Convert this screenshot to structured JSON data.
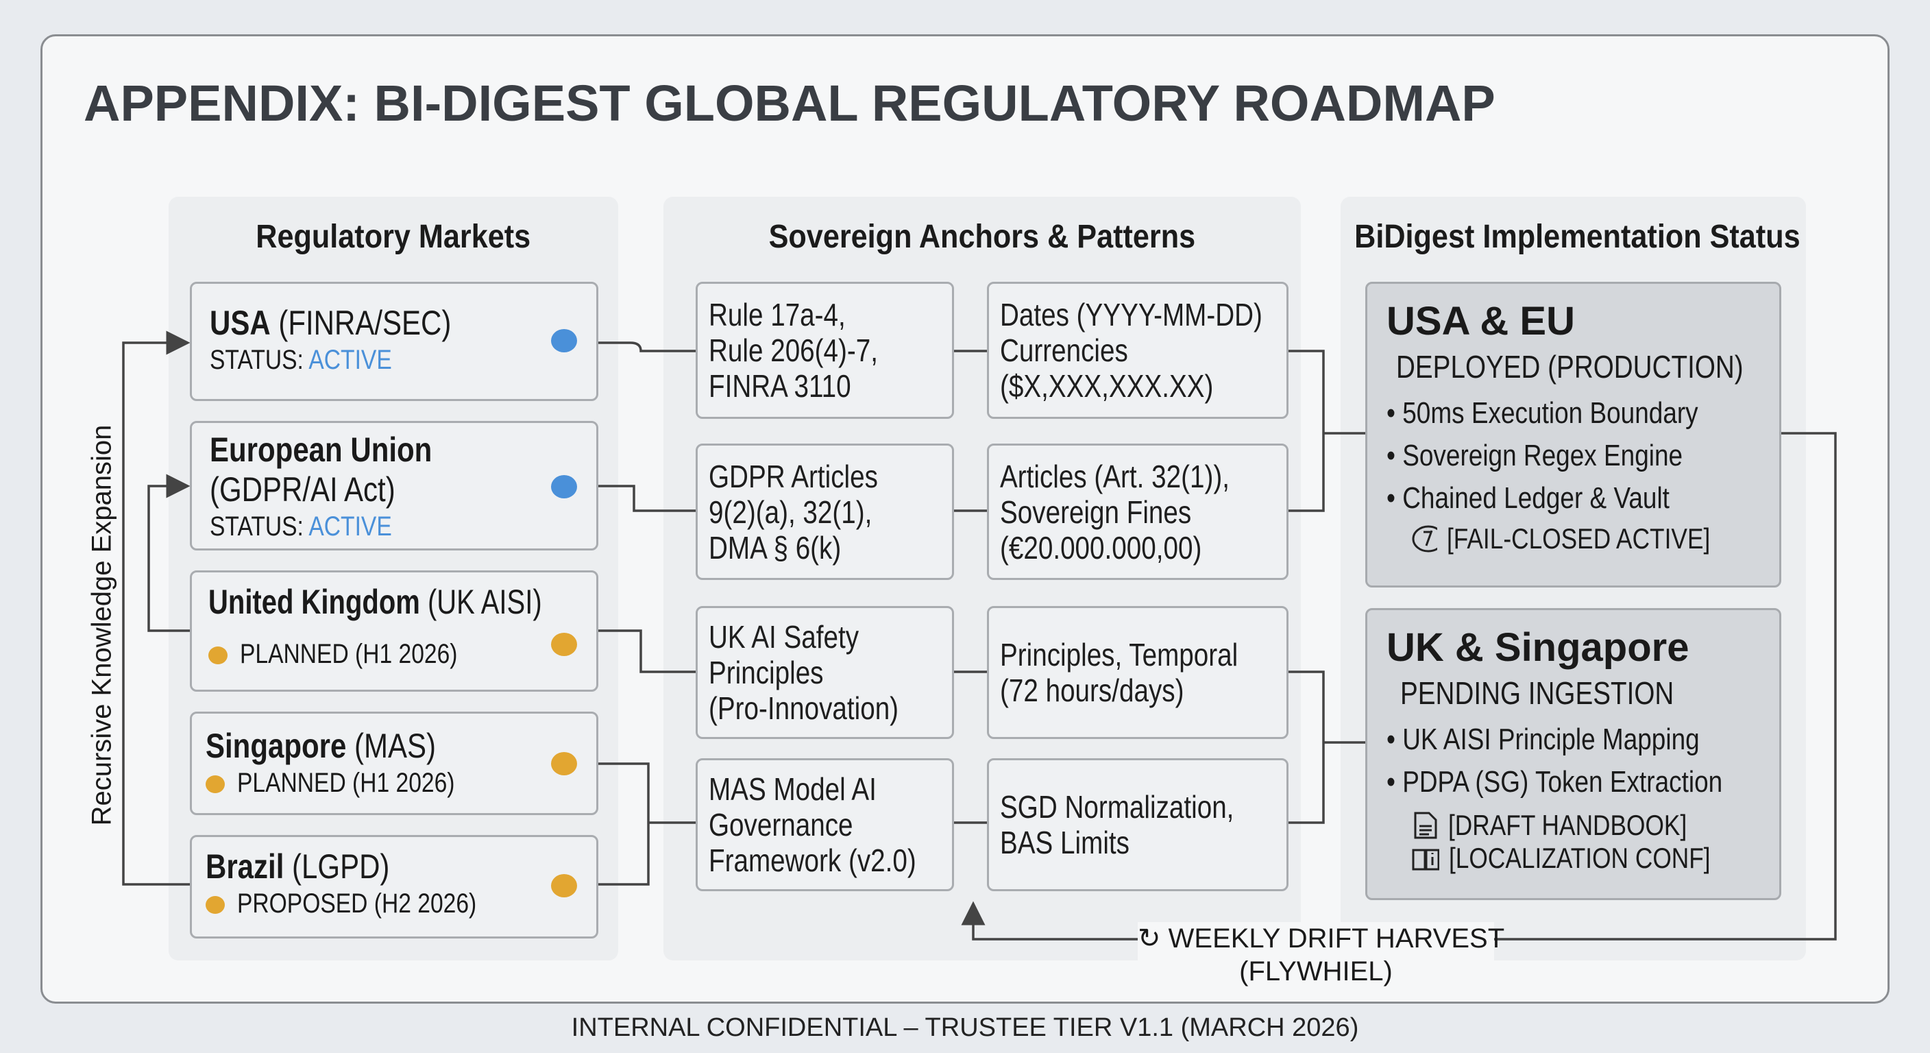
{
  "title": "APPENDIX: BI-DIGEST GLOBAL REGULATORY ROADMAP",
  "columns": {
    "markets": "Regulatory Markets",
    "anchors": "Sovereign Anchors & Patterns",
    "status": "BiDigest Implementation Status"
  },
  "loop_label": "Recursive Knowledge Expansion",
  "markets": [
    {
      "name": "USA",
      "name_rest": " (FINRA/SEC)",
      "status_label": "STATUS: ",
      "status": "ACTIVE",
      "color": "#4a90d9"
    },
    {
      "name": "European Union",
      "name_rest": "(GDPR/AI Act)",
      "status_label": "STATUS: ",
      "status": "ACTIVE",
      "color": "#4a90d9"
    },
    {
      "name": "United Kingdom",
      "name_rest": " (UK AISI)",
      "status": "PLANNED (H1 2026)",
      "color": "#e2a631"
    },
    {
      "name": "Singapore",
      "name_rest": " (MAS)",
      "status": "PLANNED (H1 2026)",
      "color": "#e2a631"
    },
    {
      "name": "Brazil",
      "name_rest": " (LGPD)",
      "status": "PROPOSED (H2 2026)",
      "color": "#e2a631"
    }
  ],
  "anchors": [
    {
      "rule": "Rule 17a-4,\nRule 206(4)-7,\nFINRA 3110",
      "pattern": "Dates (YYYY-MM-DD)\nCurrencies\n($X,XXX,XXX.XX)"
    },
    {
      "rule": "GDPR Articles\n9(2)(a), 32(1),\nDMA § 6(k)",
      "pattern": "Articles (Art. 32(1)),\nSovereign Fines\n(€20.000.000,00)"
    },
    {
      "rule": "UK AI Safety\nPrinciples\n(Pro-Innovation)",
      "pattern": "Principles, Temporal\n(72 hours/days)"
    },
    {
      "rule": "MAS Model AI\nGovernance\nFramework (v2.0)",
      "pattern": "SGD Normalization,\nBAS Limits"
    }
  ],
  "status": [
    {
      "title": "USA & EU",
      "state": "DEPLOYED (PRODUCTION)",
      "bullets": [
        "50ms Execution Boundary",
        "Sovereign Regex Engine",
        "Chained Ledger & Vault"
      ],
      "tags": [
        {
          "icon": "gauge-icon",
          "text": "[FAIL-CLOSED ACTIVE]"
        }
      ]
    },
    {
      "title": "UK & Singapore",
      "state": "PENDING INGESTION",
      "bullets": [
        "UK AISI Principle Mapping",
        "PDPA (SG) Token Extraction"
      ],
      "tags": [
        {
          "icon": "document-icon",
          "text": "[DRAFT HANDBOOK]"
        },
        {
          "icon": "book-info-icon",
          "text": "[LOCALIZATION CONF]"
        }
      ]
    }
  ],
  "flywheel": {
    "line1": "WEEKLY DRIFT HARVEST",
    "line2": "(FLYWHIEL)"
  },
  "footer": "INTERNAL CONFIDENTIAL – TRUSTEE TIER V1.1 (MARCH 2026)"
}
